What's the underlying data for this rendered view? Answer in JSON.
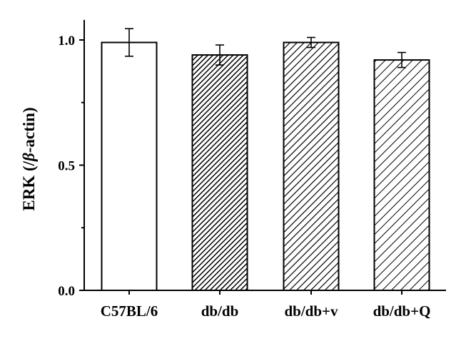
{
  "chart_data": {
    "type": "bar",
    "title": "",
    "xlabel": "",
    "ylabel": "ERK (/",
    "ylabel_symbol": "β",
    "ylabel_suffix": "-actin)",
    "categories": [
      "C57BL/6",
      "db/db",
      "db/db+v",
      "db/db+Q"
    ],
    "values": [
      0.99,
      0.94,
      0.99,
      0.92
    ],
    "errors": [
      0.055,
      0.04,
      0.02,
      0.03
    ],
    "fill_patterns": [
      "solid-white",
      "dense-hatch",
      "medium-hatch",
      "sparse-hatch"
    ],
    "ylim": [
      0,
      1.08
    ],
    "yticks": [
      0.0,
      0.5,
      1.0
    ],
    "ytick_labels": [
      "0.0",
      "0.5",
      "1.0"
    ],
    "grid": false,
    "legend": "none",
    "colors": {
      "bar_edge": "#000000",
      "bar_fill": "#ffffff",
      "hatch": "#000000"
    }
  }
}
